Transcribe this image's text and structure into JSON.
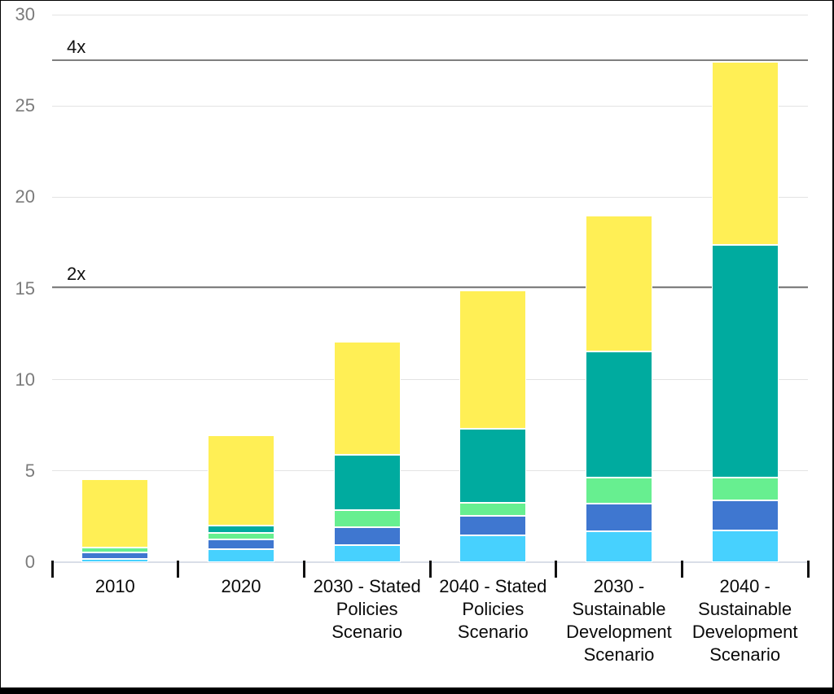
{
  "chart_data": {
    "type": "bar",
    "stacked": true,
    "title": "",
    "xlabel": "",
    "ylabel": "",
    "grid": true,
    "legend": "none",
    "categories": [
      "2010",
      "2020",
      "2030 - Stated\nPolicies\nScenario",
      "2040 - Stated\nPolicies\nScenario",
      "2030 -\nSustainable\nDevelopment\nScenario",
      "2040 -\nSustainable\nDevelopment\nScenario"
    ],
    "series": [
      {
        "name": "cyan",
        "color": "#47D1FE",
        "values": [
          0.2,
          0.7,
          0.95,
          1.45,
          1.7,
          1.75
        ]
      },
      {
        "name": "blue",
        "color": "#3F77D0",
        "values": [
          0.35,
          0.55,
          0.95,
          1.1,
          1.5,
          1.65
        ]
      },
      {
        "name": "light-green",
        "color": "#67EF90",
        "values": [
          0.25,
          0.35,
          0.95,
          0.7,
          1.45,
          1.25
        ]
      },
      {
        "name": "teal",
        "color": "#00AB9F",
        "values": [
          0.0,
          0.4,
          3.05,
          4.05,
          6.9,
          12.75
        ]
      },
      {
        "name": "yellow",
        "color": "#FFEF55",
        "values": [
          3.75,
          4.95,
          6.2,
          7.6,
          7.45,
          10.0
        ]
      }
    ],
    "totals": [
      4.55,
      6.95,
      12.1,
      14.9,
      19.0,
      27.4
    ],
    "y_axis": {
      "range": [
        0,
        30
      ],
      "ticks": [
        0,
        5,
        10,
        15,
        20,
        25,
        30
      ],
      "tick_labels": [
        "0",
        "5",
        "10",
        "15",
        "20",
        "25",
        "30"
      ]
    },
    "reference_lines": [
      {
        "label": "4x",
        "value": 27.5
      },
      {
        "label": "2x",
        "value": 15.05
      }
    ]
  },
  "style_colors": {
    "gridline": "#e3e3e3",
    "baseline": "#d9dee8",
    "reference_line": "#7f7f7f",
    "y_label_text": "#7b7b7b",
    "x_label_text": "#0a0a0a",
    "tick_mark": "#111111",
    "segment_border": "#ffffff",
    "frame_border": "#000000"
  }
}
